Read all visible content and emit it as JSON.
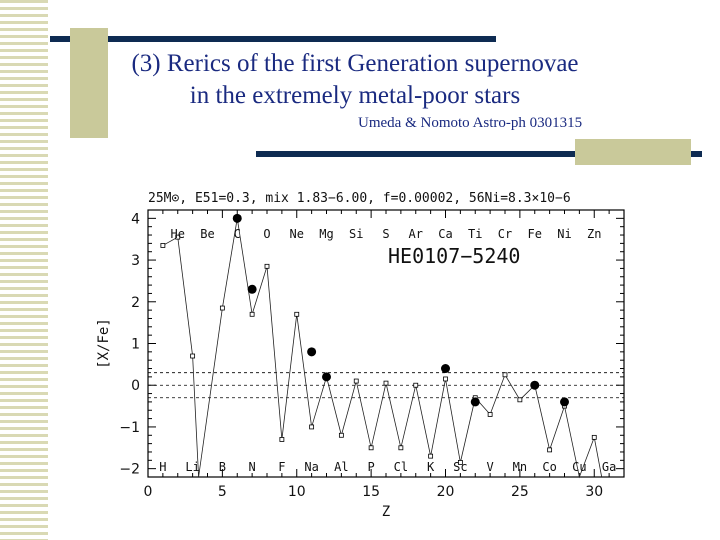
{
  "slide": {
    "title_line1": "(3) Rerics of the first Generation supernovae",
    "title_line2": "in the extremely metal-poor stars",
    "credit": "Umeda & Nomoto Astro-ph 0301315"
  },
  "colors": {
    "title": "#1a2a80",
    "bar": "#0e2b52",
    "accent_block": "#c9c99a",
    "stripe": "#d9d9b4"
  },
  "chart_data": {
    "type": "scatter",
    "header": "25M⊙, E51=0.3,  mix  1.83−6.00,  f=0.00002,  56Ni=8.3×10−6",
    "star_label": "HE0107−5240",
    "xlabel": "Z",
    "ylabel": "[X/Fe]",
    "xlim": [
      0,
      32
    ],
    "ylim": [
      -2.2,
      4.2
    ],
    "xticks": [
      0,
      5,
      10,
      15,
      20,
      25,
      30
    ],
    "yticks": [
      -2,
      -1,
      0,
      1,
      2,
      3,
      4
    ],
    "reference_lines": [
      0.3,
      0,
      -0.3
    ],
    "elements_top": [
      {
        "z": 2,
        "symbol": "He"
      },
      {
        "z": 4,
        "symbol": "Be"
      },
      {
        "z": 6,
        "symbol": "C"
      },
      {
        "z": 8,
        "symbol": "O"
      },
      {
        "z": 10,
        "symbol": "Ne"
      },
      {
        "z": 12,
        "symbol": "Mg"
      },
      {
        "z": 14,
        "symbol": "Si"
      },
      {
        "z": 16,
        "symbol": "S"
      },
      {
        "z": 18,
        "symbol": "Ar"
      },
      {
        "z": 20,
        "symbol": "Ca"
      },
      {
        "z": 22,
        "symbol": "Ti"
      },
      {
        "z": 24,
        "symbol": "Cr"
      },
      {
        "z": 26,
        "symbol": "Fe"
      },
      {
        "z": 28,
        "symbol": "Ni"
      },
      {
        "z": 30,
        "symbol": "Zn"
      }
    ],
    "elements_bottom": [
      {
        "z": 1,
        "symbol": "H"
      },
      {
        "z": 3,
        "symbol": "Li"
      },
      {
        "z": 5,
        "symbol": "B"
      },
      {
        "z": 7,
        "symbol": "N"
      },
      {
        "z": 9,
        "symbol": "F"
      },
      {
        "z": 11,
        "symbol": "Na"
      },
      {
        "z": 13,
        "symbol": "Al"
      },
      {
        "z": 15,
        "symbol": "P"
      },
      {
        "z": 17,
        "symbol": "Cl"
      },
      {
        "z": 19,
        "symbol": "K"
      },
      {
        "z": 21,
        "symbol": "Sc"
      },
      {
        "z": 23,
        "symbol": "V"
      },
      {
        "z": 25,
        "symbol": "Mn"
      },
      {
        "z": 27,
        "symbol": "Co"
      },
      {
        "z": 29,
        "symbol": "Cu"
      },
      {
        "z": 31,
        "symbol": "Ga"
      }
    ],
    "series": [
      {
        "marker": "open-square",
        "points": [
          {
            "x": 1,
            "y": 3.35
          },
          {
            "x": 2,
            "y": 3.55
          },
          {
            "x": 3,
            "y": 0.7
          },
          {
            "x": 3.4,
            "y": -2.2
          },
          {
            "x": 5,
            "y": 1.85
          },
          {
            "x": 6,
            "y": 4.0
          },
          {
            "x": 7,
            "y": 1.7
          },
          {
            "x": 8,
            "y": 2.85
          },
          {
            "x": 9,
            "y": -1.3
          },
          {
            "x": 10,
            "y": 1.7
          },
          {
            "x": 11,
            "y": -1.0
          },
          {
            "x": 12,
            "y": 0.2
          },
          {
            "x": 13,
            "y": -1.2
          },
          {
            "x": 14,
            "y": 0.1
          },
          {
            "x": 15,
            "y": -1.5
          },
          {
            "x": 16,
            "y": 0.05
          },
          {
            "x": 17,
            "y": -1.5
          },
          {
            "x": 18,
            "y": 0.0
          },
          {
            "x": 19,
            "y": -1.7
          },
          {
            "x": 20,
            "y": 0.15
          },
          {
            "x": 21,
            "y": -1.85
          },
          {
            "x": 22,
            "y": -0.3
          },
          {
            "x": 23,
            "y": -0.7
          },
          {
            "x": 24,
            "y": 0.25
          },
          {
            "x": 25,
            "y": -0.35
          },
          {
            "x": 26,
            "y": 0.0
          },
          {
            "x": 27,
            "y": -1.55
          },
          {
            "x": 28,
            "y": -0.5
          },
          {
            "x": 29,
            "y": -2.2
          },
          {
            "x": 30,
            "y": -1.25
          },
          {
            "x": 30.5,
            "y": -2.2
          }
        ]
      },
      {
        "marker": "filled-circle",
        "points": [
          {
            "x": 6,
            "y": 4.0
          },
          {
            "x": 7,
            "y": 2.3
          },
          {
            "x": 11,
            "y": 0.8
          },
          {
            "x": 12,
            "y": 0.2
          },
          {
            "x": 20,
            "y": 0.4
          },
          {
            "x": 22,
            "y": -0.4
          },
          {
            "x": 26,
            "y": 0.0
          },
          {
            "x": 28,
            "y": -0.4
          }
        ]
      }
    ]
  }
}
